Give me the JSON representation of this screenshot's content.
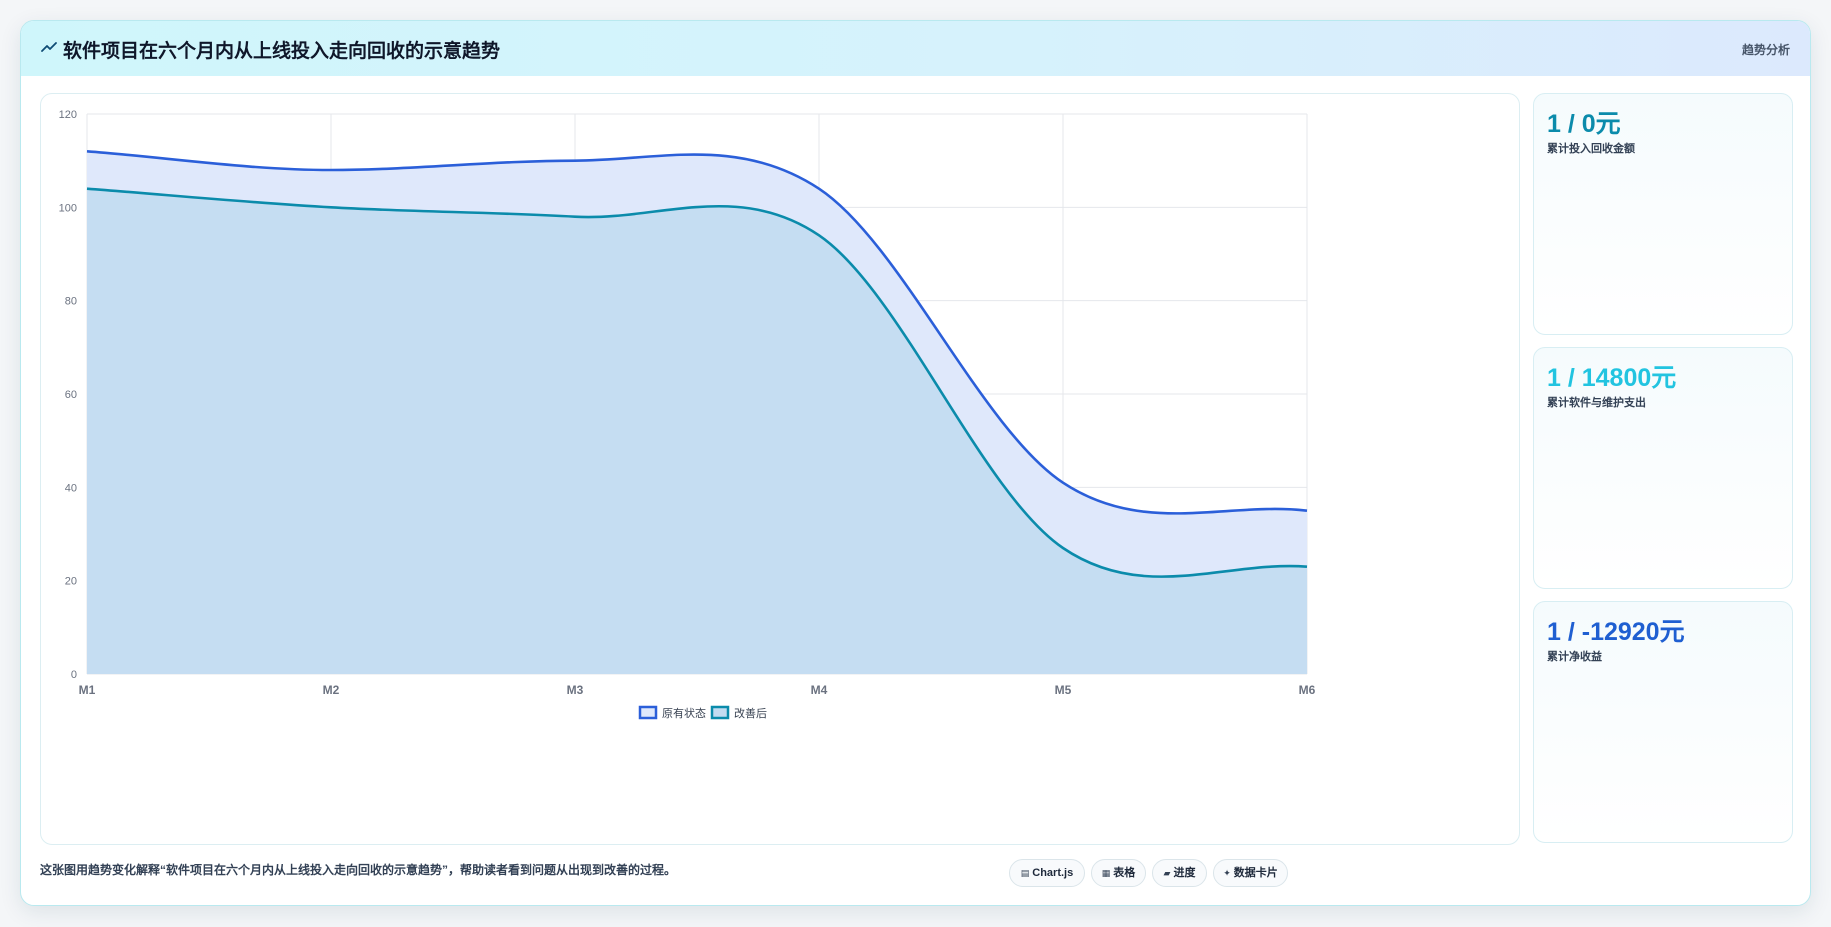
{
  "header": {
    "title": "软件项目在六个月内从上线投入走向回收的示意趋势",
    "tag": "趋势分析"
  },
  "colors": {
    "series_original": "#2b5fd9",
    "series_improved": "#0b8bab",
    "fill_original": "#dfe8fb",
    "fill_improved": "#c3dcf1",
    "stat_1": "#0b8bab",
    "stat_2": "#22c4e0",
    "stat_3": "#1f5fd1"
  },
  "stats": [
    {
      "value": "1 / 0元",
      "label": "累计投入回收金额"
    },
    {
      "value": "1 / 14800元",
      "label": "累计软件与维护支出"
    },
    {
      "value": "1 / -12920元",
      "label": "累计净收益"
    }
  ],
  "caption": "这张图用趋势变化解释“软件项目在六个月内从上线投入走向回收的示意趋势”，帮助读者看到问题从出现到改善的过程。",
  "chips": [
    {
      "icon": "chart-icon",
      "glyph": "▤",
      "label": "Chart.js"
    },
    {
      "icon": "table-icon",
      "glyph": "▦",
      "label": "表格"
    },
    {
      "icon": "progress-icon",
      "glyph": "▰",
      "label": "进度"
    },
    {
      "icon": "card-icon",
      "glyph": "✦",
      "label": "数据卡片"
    }
  ],
  "chart_data": {
    "type": "area",
    "categories": [
      "M1",
      "M2",
      "M3",
      "M4",
      "M5",
      "M6"
    ],
    "ylim": [
      0,
      120
    ],
    "yticks": [
      0,
      20,
      40,
      60,
      80,
      100,
      120
    ],
    "legend": "bottom",
    "grid": true,
    "series": [
      {
        "name": "原有状态",
        "values": [
          112,
          108,
          110,
          104,
          41,
          35
        ]
      },
      {
        "name": "改善后",
        "values": [
          104,
          100,
          98,
          94,
          27,
          23
        ]
      }
    ]
  }
}
